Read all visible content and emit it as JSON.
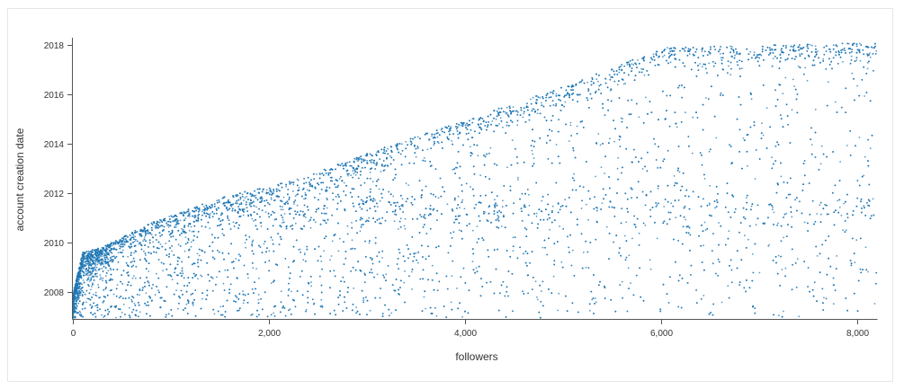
{
  "chart_data": {
    "type": "scatter",
    "title": "",
    "xlabel": "followers",
    "ylabel": "account creation date",
    "xlim": [
      0,
      8200
    ],
    "ylim": [
      2006.9,
      2018.3
    ],
    "x_ticks": [
      0,
      2000,
      4000,
      6000,
      8000
    ],
    "x_tick_labels": [
      "0",
      "2,000",
      "4,000",
      "6,000",
      "8,000"
    ],
    "y_ticks": [
      2008,
      2010,
      2012,
      2014,
      2016,
      2018
    ],
    "y_tick_labels": [
      "2008",
      "2010",
      "2012",
      "2014",
      "2016",
      "2018"
    ],
    "grid": false,
    "point_color": "#1f77b4",
    "upper_boundary": [
      {
        "x": 0,
        "y": 2007.9
      },
      {
        "x": 100,
        "y": 2009.6
      },
      {
        "x": 300,
        "y": 2009.8
      },
      {
        "x": 800,
        "y": 2010.8
      },
      {
        "x": 1500,
        "y": 2011.8
      },
      {
        "x": 2300,
        "y": 2012.6
      },
      {
        "x": 3000,
        "y": 2013.6
      },
      {
        "x": 4000,
        "y": 2015.0
      },
      {
        "x": 5000,
        "y": 2016.3
      },
      {
        "x": 5900,
        "y": 2017.7
      },
      {
        "x": 6000,
        "y": 2017.9
      },
      {
        "x": 8200,
        "y": 2018.1
      }
    ],
    "density_bands": [
      {
        "y": 2011.3,
        "label": "dense band around 2011"
      },
      {
        "y": 2009.8,
        "label": "dense cluster near 0 followers"
      }
    ],
    "approx_point_count": 9000
  }
}
